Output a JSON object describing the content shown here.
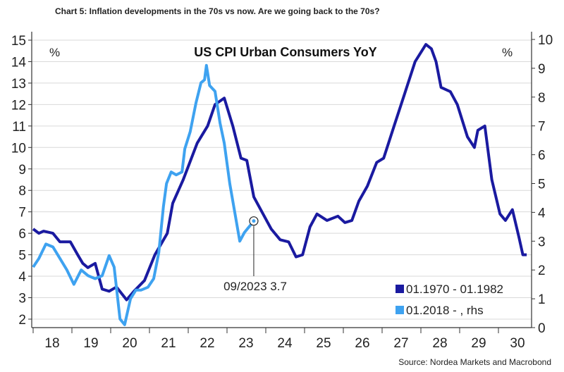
{
  "header": {
    "caption": "Chart 5: Inflation developments in the 70s vs now. Are we going back to the 70s?"
  },
  "footer": {
    "source": "Source: Nordea Markets and Macrobond"
  },
  "colors": {
    "dark": "#1a1aa0",
    "light": "#3ea2f0",
    "grid": "#d9d9d9"
  },
  "chart_data": {
    "type": "line",
    "title": "US CPI Urban Consumers YoY",
    "left_unit": "%",
    "right_unit": "%",
    "x_ticks": [
      "18",
      "19",
      "20",
      "21",
      "22",
      "23",
      "24",
      "25",
      "26",
      "27",
      "28",
      "29",
      "30"
    ],
    "xlim": [
      18,
      30.87
    ],
    "ylim_left": [
      1.6,
      15
    ],
    "yticks_left": [
      "2",
      "3",
      "4",
      "5",
      "6",
      "7",
      "8",
      "9",
      "10",
      "11",
      "12",
      "13",
      "14",
      "15"
    ],
    "ylim_right": [
      0,
      10
    ],
    "yticks_right": [
      "0",
      "1",
      "2",
      "3",
      "4",
      "5",
      "6",
      "7",
      "8",
      "9",
      "10"
    ],
    "grid": "horizontal",
    "legend_position": "bottom-right",
    "annotation": {
      "text": "09/2023 3.7",
      "x": 23.69,
      "y": 3.7,
      "axis": "right"
    },
    "series": [
      {
        "name": "01.1970 - 01.1982",
        "axis": "left",
        "x": [
          18.0,
          18.15,
          18.27,
          18.51,
          18.69,
          18.96,
          19.15,
          19.28,
          19.41,
          19.6,
          19.78,
          19.96,
          20.15,
          20.41,
          20.6,
          20.87,
          21.14,
          21.46,
          21.6,
          21.87,
          22.23,
          22.5,
          22.69,
          22.93,
          23.15,
          23.36,
          23.51,
          23.69,
          23.9,
          24.14,
          24.37,
          24.59,
          24.78,
          24.95,
          25.14,
          25.32,
          25.58,
          25.86,
          26.04,
          26.22,
          26.4,
          26.62,
          26.86,
          27.04,
          27.31,
          27.58,
          27.85,
          28.13,
          28.27,
          28.39,
          28.52,
          28.76,
          28.94,
          29.2,
          29.38,
          29.47,
          29.65,
          29.83,
          30.04,
          30.18,
          30.36,
          30.53,
          30.63,
          30.73
        ],
        "y": [
          6.2,
          6.0,
          6.1,
          6.0,
          5.6,
          5.6,
          5.0,
          4.6,
          4.4,
          4.6,
          3.4,
          3.3,
          3.5,
          2.9,
          3.3,
          3.8,
          5.0,
          6.0,
          7.4,
          8.5,
          10.2,
          11.0,
          12.0,
          12.3,
          11.0,
          9.5,
          9.4,
          7.7,
          7.0,
          6.2,
          5.7,
          5.6,
          4.9,
          5.0,
          6.3,
          6.9,
          6.6,
          6.8,
          6.5,
          6.6,
          7.5,
          8.2,
          9.3,
          9.5,
          11.0,
          12.5,
          14.0,
          14.8,
          14.6,
          14.0,
          12.8,
          12.6,
          12.0,
          10.5,
          10.0,
          10.8,
          11.0,
          8.5,
          6.9,
          6.6,
          7.1,
          5.8,
          5.0,
          5.0
        ]
      },
      {
        "name": "01.2018 - , rhs",
        "axis": "right",
        "x": [
          18.0,
          18.15,
          18.33,
          18.51,
          18.69,
          18.87,
          19.05,
          19.24,
          19.42,
          19.6,
          19.78,
          19.96,
          20.09,
          20.24,
          20.36,
          20.51,
          20.65,
          20.78,
          20.96,
          21.11,
          21.24,
          21.36,
          21.44,
          21.56,
          21.69,
          21.84,
          21.91,
          22.05,
          22.2,
          22.33,
          22.42,
          22.47,
          22.55,
          22.69,
          22.82,
          22.93,
          23.07,
          23.2,
          23.33,
          23.45,
          23.69
        ],
        "y": [
          2.1,
          2.4,
          2.9,
          2.8,
          2.4,
          2.0,
          1.5,
          2.0,
          1.8,
          1.7,
          1.8,
          2.5,
          2.1,
          0.3,
          0.1,
          1.0,
          1.3,
          1.3,
          1.4,
          1.7,
          2.6,
          4.2,
          5.0,
          5.4,
          5.3,
          5.4,
          6.2,
          6.8,
          7.8,
          8.5,
          8.6,
          9.1,
          8.4,
          8.2,
          7.1,
          6.4,
          5.0,
          4.0,
          3.0,
          3.3,
          3.7
        ]
      }
    ]
  }
}
